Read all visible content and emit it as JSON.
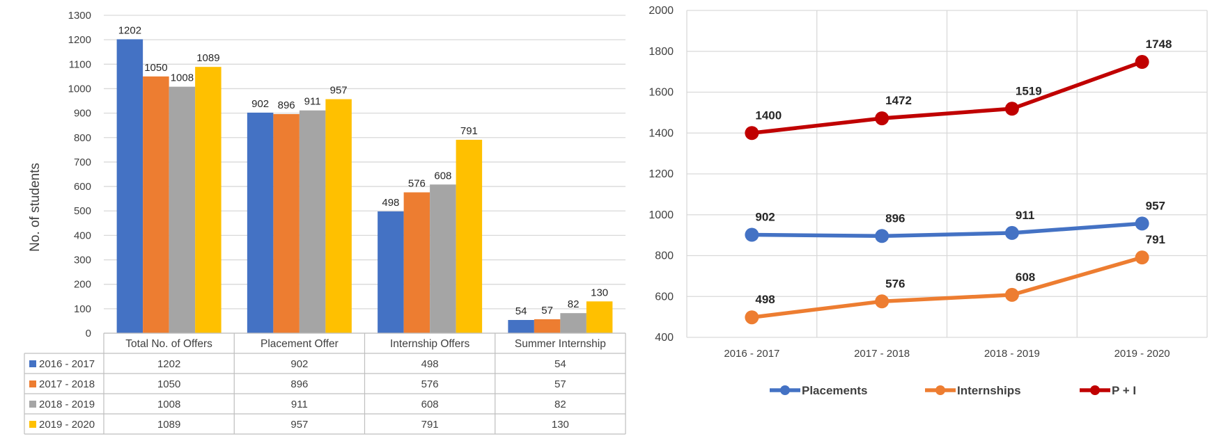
{
  "chart_data": [
    {
      "type": "bar",
      "title": "",
      "ylabel": "No. of students",
      "xlabel": "",
      "ylim": [
        0,
        1300
      ],
      "yticks": [
        0,
        100,
        200,
        300,
        400,
        500,
        600,
        700,
        800,
        900,
        1000,
        1100,
        1200,
        1300
      ],
      "grid": true,
      "categories": [
        "Total No. of Offers",
        "Placement Offer",
        "Internship Offers",
        "Summer Internship"
      ],
      "series": [
        {
          "name": "2016 - 2017",
          "color": "#4472C4",
          "values": [
            1202,
            902,
            498,
            54
          ]
        },
        {
          "name": "2017 - 2018",
          "color": "#ED7D31",
          "values": [
            1050,
            896,
            576,
            57
          ]
        },
        {
          "name": "2018 - 2019",
          "color": "#A5A5A5",
          "values": [
            1008,
            911,
            608,
            82
          ]
        },
        {
          "name": "2019 - 2020",
          "color": "#FFC000",
          "values": [
            1089,
            957,
            791,
            130
          ]
        }
      ],
      "data_table": true,
      "data_labels": true
    },
    {
      "type": "line",
      "title": "",
      "xlabel": "",
      "ylabel": "",
      "ylim": [
        400,
        2000
      ],
      "yticks": [
        400,
        600,
        800,
        1000,
        1200,
        1400,
        1600,
        1800,
        2000
      ],
      "grid": true,
      "x": [
        "2016 - 2017",
        "2017 - 2018",
        "2018 - 2019",
        "2019 - 2020"
      ],
      "series": [
        {
          "name": "Placements",
          "color": "#4472C4",
          "values": [
            902,
            896,
            911,
            957
          ]
        },
        {
          "name": "Internships",
          "color": "#ED7D31",
          "values": [
            498,
            576,
            608,
            791
          ]
        },
        {
          "name": "P + I",
          "color": "#C00000",
          "values": [
            1400,
            1472,
            1519,
            1748
          ]
        }
      ],
      "legend": "bottom",
      "data_labels": true
    }
  ]
}
